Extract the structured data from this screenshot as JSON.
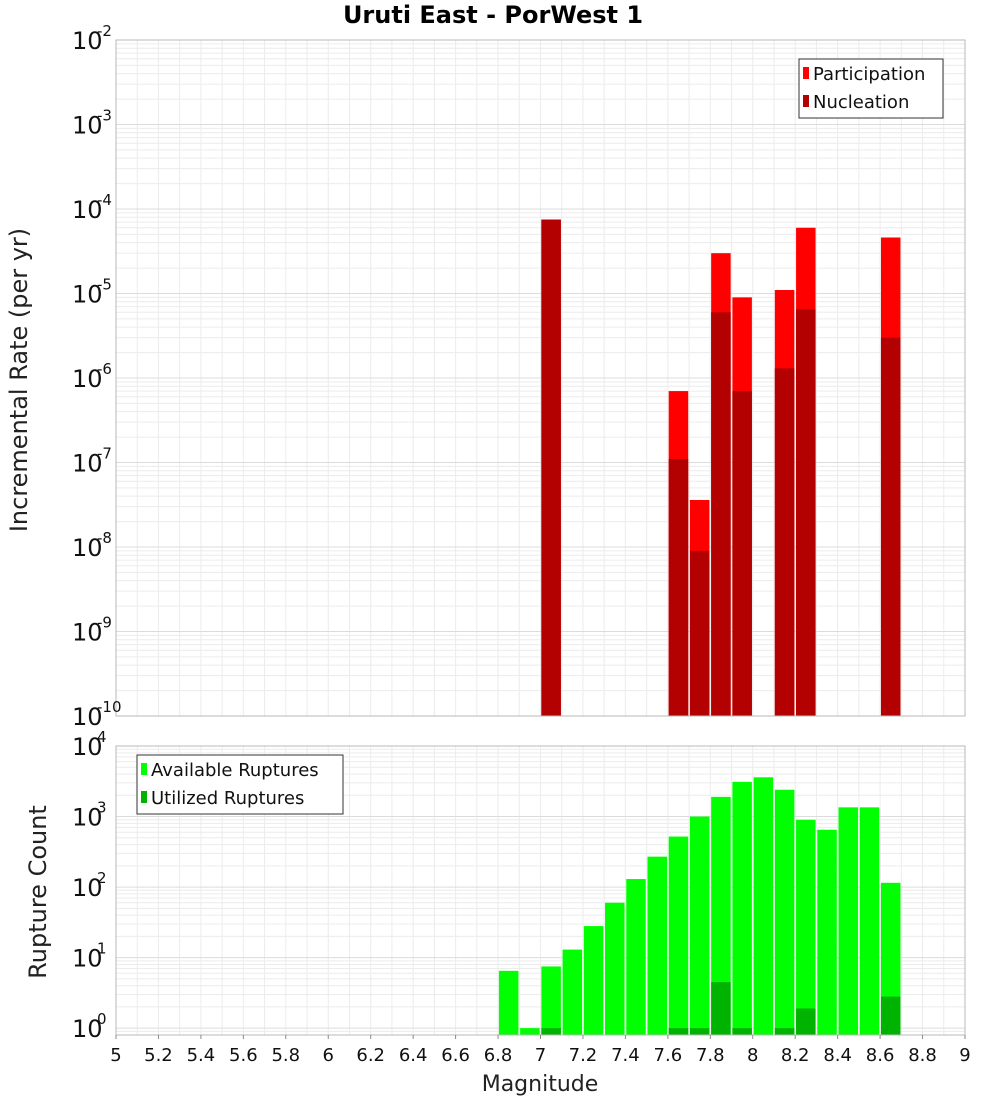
{
  "chart_data": [
    {
      "type": "bar",
      "title": "Uruti East - PorWest 1",
      "xlabel": "",
      "ylabel": "Incremental Rate (per yr)",
      "yscale": "log",
      "ylim": [
        1e-10,
        0.01
      ],
      "xlim": [
        5,
        9
      ],
      "grid": true,
      "legend_position": "top-right",
      "y_tick_exponents": [
        "-10",
        "-9",
        "-8",
        "-7",
        "-6",
        "-5",
        "-4",
        "-3",
        "-2"
      ],
      "x": [
        7.05,
        7.65,
        7.75,
        7.85,
        7.95,
        8.15,
        8.25,
        8.65
      ],
      "series": [
        {
          "name": "Participation",
          "color": "#ff0000",
          "values": [
            7.5e-05,
            7e-07,
            3.6e-08,
            3e-05,
            9e-06,
            1.1e-05,
            6e-05,
            4.6e-05
          ]
        },
        {
          "name": "Nucleation",
          "color": "#b30000",
          "values": [
            7.5e-05,
            1.1e-07,
            9e-09,
            6e-06,
            7e-07,
            1.3e-06,
            6.5e-06,
            3e-06
          ]
        }
      ]
    },
    {
      "type": "bar",
      "xlabel": "Magnitude",
      "ylabel": "Rupture Count",
      "yscale": "log",
      "ylim": [
        0.8,
        10000
      ],
      "xlim": [
        5,
        9
      ],
      "grid": true,
      "legend_position": "top-left",
      "x_ticks": [
        "5",
        "5.2",
        "5.4",
        "5.6",
        "5.8",
        "6",
        "6.2",
        "6.4",
        "6.6",
        "6.8",
        "7",
        "7.2",
        "7.4",
        "7.6",
        "7.8",
        "8",
        "8.2",
        "8.4",
        "8.6",
        "8.8",
        "9"
      ],
      "y_tick_exponents": [
        "0",
        "1",
        "2",
        "3",
        "4"
      ],
      "x": [
        6.85,
        6.95,
        7.05,
        7.15,
        7.25,
        7.35,
        7.45,
        7.55,
        7.65,
        7.75,
        7.85,
        7.95,
        8.05,
        8.15,
        8.25,
        8.35,
        8.45,
        8.55,
        8.65
      ],
      "series": [
        {
          "name": "Available Ruptures",
          "color": "#00ff00",
          "values": [
            6.5,
            1,
            7.5,
            13,
            28,
            60,
            130,
            270,
            520,
            1000,
            1900,
            3100,
            3600,
            2400,
            900,
            650,
            1350,
            1350,
            115
          ]
        },
        {
          "name": "Utilized Ruptures",
          "color": "#00b300",
          "values": [
            0,
            0,
            1,
            0,
            0,
            0,
            0,
            0,
            1,
            1,
            4.5,
            1,
            0,
            1,
            1.9,
            0,
            0,
            0,
            2.8
          ]
        }
      ]
    }
  ]
}
